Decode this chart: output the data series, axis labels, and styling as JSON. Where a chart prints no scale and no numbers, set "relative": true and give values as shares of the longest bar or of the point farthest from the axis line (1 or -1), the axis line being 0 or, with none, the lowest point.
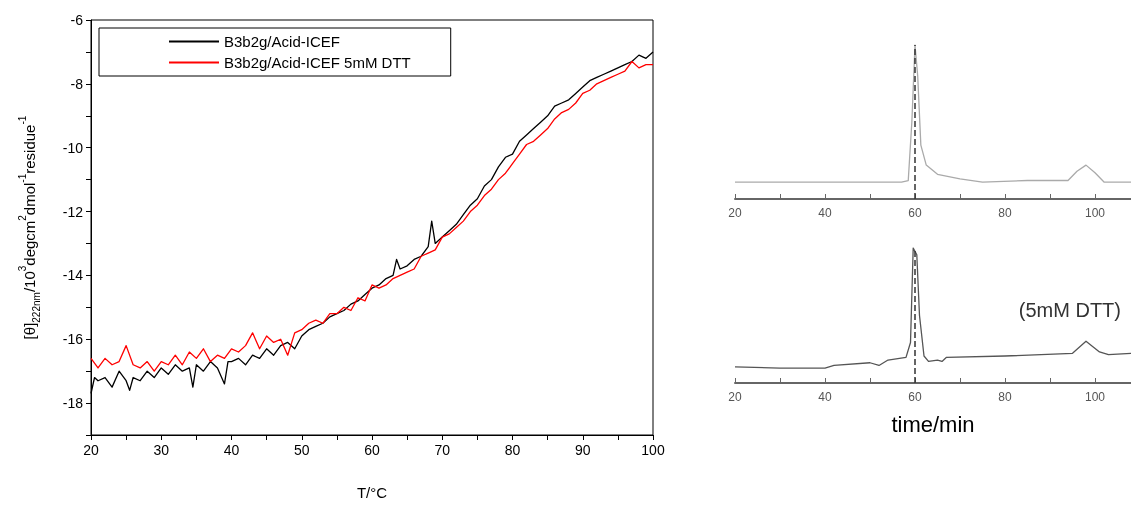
{
  "chart_data": [
    {
      "type": "line",
      "xlabel": "T/°C",
      "ylabel": "[θ]$_{222nm}$/10$^{3}$degcm$^{2}$dmol$^{-1}$residue$^{-1}$",
      "legend": "top left",
      "marker": "none",
      "xlim": [
        20,
        100
      ],
      "ylim": [
        -19,
        -6
      ],
      "xticks": [
        20,
        {
          "value": 25,
          "label": null
        },
        30,
        {
          "value": 35,
          "label": null
        },
        40,
        {
          "value": 45,
          "label": null
        },
        50,
        {
          "value": 55,
          "label": null
        },
        60,
        {
          "value": 65,
          "label": null
        },
        70,
        {
          "value": 75,
          "label": null
        },
        80,
        {
          "value": 85,
          "label": null
        },
        90,
        {
          "value": 95,
          "label": null
        },
        100
      ],
      "yticks": [
        {
          "value": -19,
          "label": null
        },
        -18,
        {
          "value": -17,
          "label": null
        },
        -16,
        {
          "value": -15,
          "label": null
        },
        -14,
        {
          "value": -13,
          "label": null
        },
        -12,
        {
          "value": -11,
          "label": null
        },
        -10,
        {
          "value": -9,
          "label": null
        },
        -8,
        {
          "value": -7,
          "label": null
        },
        -6
      ],
      "series": [
        {
          "name": "B3b2g/Acid-ICEF",
          "color": "#000000",
          "x": [
            20,
            20.5,
            21,
            22,
            23,
            24,
            25,
            25.5,
            26,
            27,
            28,
            29,
            30,
            31,
            32,
            33,
            34,
            34.5,
            35,
            36,
            37,
            38,
            39,
            39.5,
            40,
            41,
            42,
            43,
            44,
            45,
            46,
            47,
            48,
            49,
            50,
            51,
            52,
            53,
            54,
            55,
            56,
            57,
            58,
            59,
            60,
            61,
            62,
            63,
            63.5,
            64,
            65,
            66,
            67,
            68,
            68.5,
            69,
            70,
            71,
            72,
            73,
            74,
            75,
            76,
            77,
            78,
            79,
            80,
            81,
            82,
            83,
            84,
            85,
            86,
            87,
            88,
            89,
            90,
            91,
            92,
            93,
            94,
            95,
            96,
            97,
            98,
            99,
            100
          ],
          "values": [
            -17.7,
            -17.2,
            -17.3,
            -17.2,
            -17.5,
            -17.0,
            -17.3,
            -17.6,
            -17.2,
            -17.3,
            -17.0,
            -17.2,
            -16.9,
            -17.1,
            -16.8,
            -17.0,
            -16.9,
            -17.5,
            -16.8,
            -17.0,
            -16.7,
            -16.9,
            -17.4,
            -16.7,
            -16.7,
            -16.6,
            -16.8,
            -16.5,
            -16.6,
            -16.3,
            -16.5,
            -16.2,
            -16.1,
            -16.3,
            -15.9,
            -15.7,
            -15.6,
            -15.5,
            -15.3,
            -15.2,
            -15.1,
            -14.9,
            -14.8,
            -14.6,
            -14.4,
            -14.3,
            -14.1,
            -14.0,
            -13.5,
            -13.8,
            -13.7,
            -13.5,
            -13.4,
            -13.1,
            -12.3,
            -13.0,
            -12.8,
            -12.6,
            -12.4,
            -12.1,
            -11.8,
            -11.6,
            -11.2,
            -11.0,
            -10.6,
            -10.3,
            -10.2,
            -9.8,
            -9.6,
            -9.4,
            -9.2,
            -9.0,
            -8.7,
            -8.6,
            -8.5,
            -8.3,
            -8.1,
            -7.9,
            -7.8,
            -7.7,
            -7.6,
            -7.5,
            -7.4,
            -7.3,
            -7.1,
            -7.2,
            -7.0
          ]
        },
        {
          "name": "B3b2g/Acid-ICEF 5mM DTT",
          "color": "#ff0000",
          "x": [
            20,
            21,
            22,
            23,
            24,
            25,
            26,
            27,
            28,
            29,
            30,
            31,
            32,
            33,
            34,
            35,
            36,
            37,
            38,
            39,
            40,
            41,
            42,
            43,
            44,
            45,
            46,
            47,
            48,
            49,
            50,
            51,
            52,
            53,
            54,
            55,
            56,
            57,
            58,
            59,
            60,
            61,
            62,
            63,
            64,
            65,
            66,
            67,
            68,
            69,
            70,
            71,
            72,
            73,
            74,
            75,
            76,
            77,
            78,
            79,
            80,
            81,
            82,
            83,
            84,
            85,
            86,
            87,
            88,
            89,
            90,
            91,
            92,
            93,
            94,
            95,
            96,
            97,
            98,
            99,
            100
          ],
          "values": [
            -16.6,
            -16.9,
            -16.6,
            -16.8,
            -16.7,
            -16.2,
            -16.8,
            -16.9,
            -16.7,
            -17.0,
            -16.7,
            -16.8,
            -16.5,
            -16.8,
            -16.4,
            -16.6,
            -16.3,
            -16.7,
            -16.5,
            -16.6,
            -16.3,
            -16.4,
            -16.2,
            -15.8,
            -16.3,
            -15.9,
            -16.1,
            -16.0,
            -16.5,
            -15.8,
            -15.7,
            -15.5,
            -15.4,
            -15.5,
            -15.2,
            -15.2,
            -15.0,
            -15.1,
            -14.7,
            -14.8,
            -14.3,
            -14.4,
            -14.3,
            -14.1,
            -14.0,
            -13.9,
            -13.8,
            -13.4,
            -13.3,
            -13.2,
            -12.8,
            -12.7,
            -12.5,
            -12.3,
            -12.0,
            -11.8,
            -11.5,
            -11.3,
            -11.0,
            -10.8,
            -10.5,
            -10.2,
            -9.9,
            -9.8,
            -9.6,
            -9.4,
            -9.1,
            -8.9,
            -8.8,
            -8.6,
            -8.3,
            -8.2,
            -8.0,
            -7.9,
            -7.8,
            -7.7,
            -7.6,
            -7.3,
            -7.5,
            -7.4,
            -7.4
          ]
        }
      ]
    },
    {
      "type": "line",
      "relative": true,
      "tick_labels": "x",
      "marker": "none",
      "xlim": [
        20,
        108
      ],
      "xticks": [
        20,
        {
          "value": 30,
          "label": null
        },
        40,
        {
          "value": 50,
          "label": null
        },
        60,
        {
          "value": 70,
          "label": null
        },
        80,
        {
          "value": 90,
          "label": null
        },
        100
      ],
      "ref_lines": [
        {
          "axis": "x",
          "value": 60,
          "line_style": "dashed",
          "color": "#333333"
        }
      ],
      "series": [
        {
          "color": "#aaaaaa",
          "x": [
            20,
            40,
            57,
            58.5,
            59.3,
            60,
            60.6,
            61.3,
            62.5,
            65,
            70,
            75,
            85,
            94,
            96,
            98,
            100,
            102,
            108
          ],
          "values": [
            0.11,
            0.11,
            0.11,
            0.12,
            0.5,
            1,
            0.8,
            0.35,
            0.22,
            0.16,
            0.13,
            0.11,
            0.12,
            0.12,
            0.18,
            0.22,
            0.17,
            0.11,
            0.11
          ]
        }
      ]
    },
    {
      "type": "line",
      "relative": true,
      "tick_labels": "x",
      "marker": "none",
      "xlim": [
        20,
        108
      ],
      "xlabel": "time/min",
      "annotations": [
        "(5mM DTT)"
      ],
      "xticks": [
        20,
        {
          "value": 30,
          "label": null
        },
        40,
        {
          "value": 50,
          "label": null
        },
        60,
        {
          "value": 70,
          "label": null
        },
        80,
        {
          "value": 90,
          "label": null
        },
        100
      ],
      "ref_lines": [
        {
          "axis": "x",
          "value": 60,
          "line_style": "dashed",
          "color": "#333333"
        }
      ],
      "series": [
        {
          "color": "#555555",
          "x": [
            20,
            30,
            40,
            42,
            50,
            52,
            54,
            58,
            59,
            59.6,
            60.4,
            61,
            62,
            63,
            65,
            66,
            67,
            80,
            95,
            98,
            101,
            103,
            108
          ],
          "values": [
            0.12,
            0.11,
            0.11,
            0.13,
            0.15,
            0.13,
            0.17,
            0.19,
            0.3,
            1,
            0.95,
            0.5,
            0.2,
            0.16,
            0.17,
            0.16,
            0.19,
            0.2,
            0.22,
            0.31,
            0.23,
            0.21,
            0.22
          ]
        }
      ]
    }
  ]
}
